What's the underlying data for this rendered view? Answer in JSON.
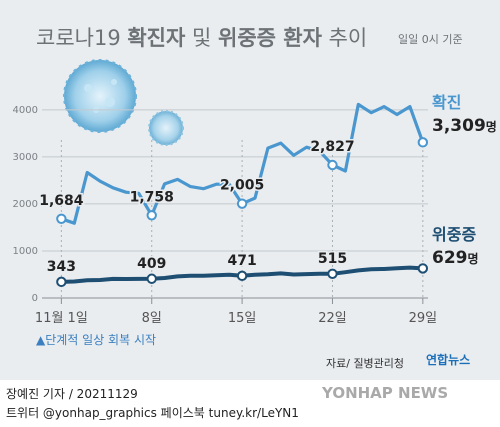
{
  "title": {
    "part1": "코로나19 ",
    "part2": "확진자",
    "part3": " 및 ",
    "part4": "위중증 환자",
    "part5": " 추이",
    "note": "일일 0시 기준"
  },
  "colors": {
    "confirmed": "#4a97cf",
    "critical": "#1e4f73",
    "background": "#e9edf0"
  },
  "chart_data": {
    "type": "line",
    "ylim": [
      0,
      4400
    ],
    "yticks": [
      "0",
      "1000",
      "2000",
      "3000",
      "4000"
    ],
    "xlim": [
      -0.5,
      29.4
    ],
    "xticks": [
      {
        "day": 1,
        "label": "11월 1일"
      },
      {
        "day": 8,
        "label": "8일"
      },
      {
        "day": 15,
        "label": "15일"
      },
      {
        "day": 22,
        "label": "22일"
      },
      {
        "day": 29,
        "label": "29일"
      }
    ],
    "grid": true,
    "series": [
      {
        "name": "확진",
        "x": [
          1,
          2,
          3,
          4,
          5,
          6,
          7,
          8,
          9,
          10,
          11,
          12,
          13,
          14,
          15,
          16,
          17,
          18,
          19,
          20,
          21,
          22,
          23,
          24,
          25,
          26,
          27,
          28,
          29
        ],
        "values": [
          1684,
          1589,
          2667,
          2482,
          2343,
          2248,
          2224,
          1758,
          2425,
          2520,
          2368,
          2324,
          2419,
          2419,
          2005,
          2124,
          3187,
          3292,
          3034,
          3206,
          3120,
          2827,
          2699,
          4115,
          3938,
          4068,
          3901,
          4068,
          3309
        ],
        "labels": {
          "1": "1,684",
          "8": "1,758",
          "15": "2,005",
          "22": "2,827"
        },
        "end_name": "확진",
        "end_value": "3,309",
        "end_unit": "명"
      },
      {
        "name": "위중증",
        "x": [
          1,
          2,
          3,
          4,
          5,
          6,
          7,
          8,
          9,
          10,
          11,
          12,
          13,
          14,
          15,
          16,
          17,
          18,
          19,
          20,
          21,
          22,
          23,
          24,
          25,
          26,
          27,
          28,
          29
        ],
        "values": [
          343,
          351,
          378,
          382,
          405,
          404,
          406,
          409,
          425,
          460,
          473,
          475,
          485,
          495,
          471,
          495,
          506,
          522,
          499,
          508,
          517,
          515,
          549,
          586,
          612,
          617,
          634,
          647,
          629
        ],
        "labels": {
          "1": "343",
          "8": "409",
          "15": "471",
          "22": "515"
        },
        "end_name": "위중증",
        "end_value": "629",
        "end_unit": "명"
      }
    ]
  },
  "footnote": "▲단계적 일상 회복 시작",
  "source": "자료/ 질병관리청",
  "agency_logo": "연합뉴스",
  "byline": "장예진 기자 / 20211129",
  "sns": "트위터 @yonhap_graphics  페이스북 tuney.kr/LeYN1",
  "watermark": "YONHAP NEWS"
}
